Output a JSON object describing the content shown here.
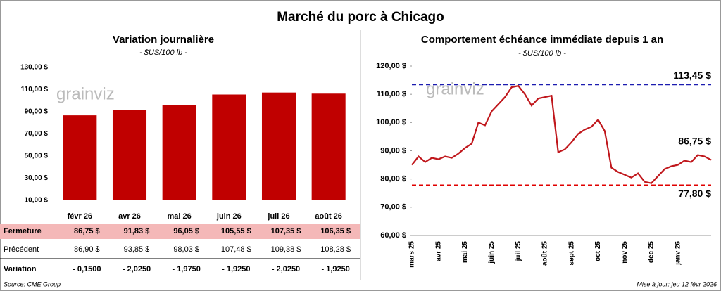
{
  "title": "Marché du porc à Chicago",
  "watermark": "grainviz",
  "chart_data": [
    {
      "type": "bar",
      "title": "Variation journalière",
      "subtitle": "- $US/100 lb -",
      "categories": [
        "févr 26",
        "avr 26",
        "mai 26",
        "juin 26",
        "juil 26",
        "août 26"
      ],
      "values": [
        86.75,
        91.83,
        96.05,
        105.55,
        107.35,
        106.35
      ],
      "color": "#c00000",
      "ylim": [
        10,
        130
      ],
      "yticks": [
        {
          "value": 10,
          "label": "10,00 $"
        },
        {
          "value": 30,
          "label": "30,00 $"
        },
        {
          "value": 50,
          "label": "50,00 $"
        },
        {
          "value": 70,
          "label": "70,00 $"
        },
        {
          "value": 90,
          "label": "90,00 $"
        },
        {
          "value": 110,
          "label": "110,00 $"
        },
        {
          "value": 130,
          "label": "130,00 $"
        }
      ],
      "grid": false
    },
    {
      "type": "line",
      "title": "Comportement échéance immédiate depuis 1 an",
      "subtitle": "- $US/100 lb -",
      "categories": [
        "mars 25",
        null,
        null,
        null,
        "avr 25",
        null,
        null,
        null,
        "mai 25",
        null,
        null,
        null,
        "juin 25",
        null,
        null,
        null,
        "juil 25",
        null,
        null,
        null,
        "août 25",
        null,
        null,
        null,
        "sept 25",
        null,
        null,
        null,
        "oct 25",
        null,
        null,
        null,
        "nov 25",
        null,
        null,
        null,
        "déc 25",
        null,
        null,
        null,
        "janv 26",
        null,
        null,
        null,
        null,
        null
      ],
      "series": [
        {
          "name": "Fermeture",
          "color": "#c0171c",
          "values": [
            85,
            88,
            86,
            87.5,
            87,
            88,
            87.5,
            89,
            91,
            92.5,
            100,
            99,
            104,
            106.5,
            109,
            112.5,
            113,
            110,
            106,
            108.5,
            109,
            109.5,
            89.5,
            90.5,
            93,
            96,
            97.5,
            98.5,
            101,
            97,
            84,
            82.5,
            81.5,
            80.5,
            82,
            79,
            78.5,
            81,
            83.5,
            84.5,
            85,
            86.5,
            86,
            88.5,
            88,
            86.75
          ],
          "value_labels": [
            null,
            null,
            null,
            null,
            null,
            null,
            null,
            null,
            null,
            null,
            null,
            null,
            null,
            null,
            null,
            null,
            null,
            null,
            null,
            null,
            null,
            null,
            null,
            null,
            null,
            null,
            null,
            null,
            null,
            null,
            null,
            null,
            null,
            null,
            null,
            null,
            null,
            null,
            null,
            null,
            null,
            null,
            null,
            null,
            null,
            "86,75 $"
          ]
        }
      ],
      "hlines": [
        {
          "value": 113.45,
          "label": "113,45 $",
          "color": "#1c1cb0"
        },
        {
          "value": 77.8,
          "label": "77,80 $",
          "color": "#e00000"
        }
      ],
      "ylim": [
        60,
        120
      ],
      "yticks": [
        {
          "value": 60,
          "label": "60,00 $"
        },
        {
          "value": 70,
          "label": "70,00 $"
        },
        {
          "value": 80,
          "label": "80,00 $"
        },
        {
          "value": 90,
          "label": "90,00 $"
        },
        {
          "value": 100,
          "label": "100,00 $"
        },
        {
          "value": 110,
          "label": "110,00 $"
        },
        {
          "value": 120,
          "label": "120,00 $"
        }
      ],
      "grid": false
    }
  ],
  "table": {
    "rows": [
      {
        "label": "Fermeture",
        "cells": [
          "86,75 $",
          "91,83 $",
          "96,05 $",
          "105,55 $",
          "107,35 $",
          "106,35 $"
        ]
      },
      {
        "label": "Précédent",
        "cells": [
          "86,90 $",
          "93,85 $",
          "98,03 $",
          "107,48 $",
          "109,38 $",
          "108,28 $"
        ]
      },
      {
        "label": "Variation",
        "cells": [
          "- 0,1500",
          "- 2,0250",
          "- 1,9750",
          "- 1,9250",
          "- 2,0250",
          "- 1,9250"
        ]
      }
    ]
  },
  "footer": {
    "source": "Source: CME Group",
    "updated": "Mise à jour: jeu 12 févr 2026"
  }
}
